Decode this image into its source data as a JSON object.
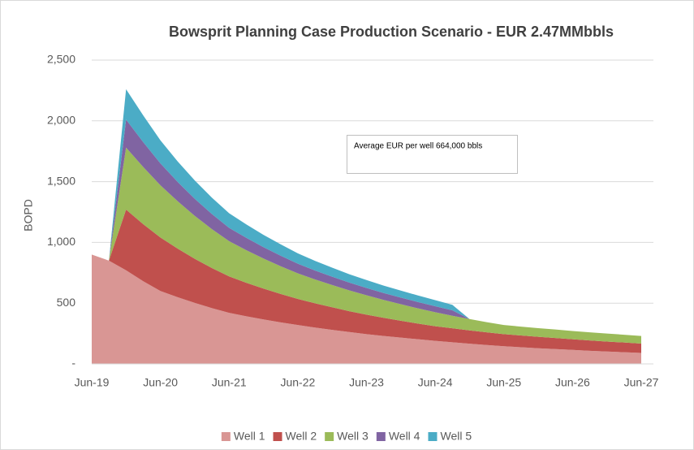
{
  "chart_data": {
    "type": "stacked_area",
    "title": "Bowsprit Planning Case Production Scenario - EUR 2.47MMbbls",
    "y_label": "BOPD",
    "annotation": "Average EUR per well 664,000 bbls",
    "categories": [
      "Jun-19",
      null,
      null,
      null,
      "Jun-20",
      null,
      null,
      null,
      "Jun-21",
      null,
      null,
      null,
      "Jun-22",
      null,
      null,
      null,
      "Jun-23",
      null,
      null,
      null,
      "Jun-24",
      null,
      null,
      null,
      "Jun-25",
      null,
      null,
      null,
      "Jun-26",
      null,
      null,
      null,
      "Jun-27"
    ],
    "series": [
      {
        "name": "Well 1",
        "color": "#d99694",
        "values": [
          900,
          850,
          770,
          680,
          600,
          549,
          502,
          459,
          420,
          392,
          366,
          342,
          320,
          299,
          280,
          262,
          245,
          230,
          216,
          203,
          190,
          178,
          166,
          155,
          145,
          137,
          129,
          122,
          115,
          108,
          102,
          96,
          90
        ]
      },
      {
        "name": "Well 2",
        "color": "#c0504d",
        "values": [
          0,
          0,
          500,
          470,
          440,
          400,
          363,
          330,
          300,
          276,
          254,
          234,
          215,
          200,
          186,
          172,
          160,
          149,
          139,
          129,
          120,
          115,
          110,
          105,
          100,
          97,
          94,
          91,
          88,
          85,
          82,
          80,
          77
        ]
      },
      {
        "name": "Well 3",
        "color": "#9bbb59",
        "values": [
          0,
          0,
          510,
          470,
          430,
          390,
          353,
          320,
          290,
          268,
          247,
          228,
          210,
          196,
          183,
          171,
          160,
          147,
          136,
          125,
          115,
          103,
          93,
          83,
          75,
          73,
          71,
          70,
          68,
          67,
          66,
          64,
          63
        ]
      },
      {
        "name": "Well 4",
        "color": "#8064a2",
        "values": [
          0,
          0,
          230,
          205,
          180,
          159,
          141,
          124,
          110,
          102,
          94,
          87,
          80,
          74,
          69,
          64,
          60,
          57,
          55,
          52,
          50,
          45,
          0,
          0,
          0,
          0,
          0,
          0,
          0,
          0,
          0,
          0,
          0
        ]
      },
      {
        "name": "Well 5",
        "color": "#4bacc6",
        "values": [
          0,
          0,
          250,
          220,
          190,
          169,
          151,
          135,
          120,
          110,
          101,
          93,
          85,
          79,
          74,
          69,
          65,
          61,
          57,
          54,
          50,
          45,
          0,
          0,
          0,
          0,
          0,
          0,
          0,
          0,
          0,
          0,
          0
        ]
      }
    ],
    "ylim": [
      0,
      2500
    ],
    "yticks": [
      {
        "value": 0,
        "label": "-"
      },
      500,
      {
        "value": 1000,
        "label": "1,000"
      },
      {
        "value": 1500,
        "label": "1,500"
      },
      {
        "value": 2000,
        "label": "2,000"
      },
      {
        "value": 2500,
        "label": "2,500"
      }
    ],
    "grid": true,
    "legend": "bottom"
  }
}
